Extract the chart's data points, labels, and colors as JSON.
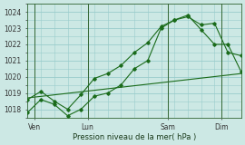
{
  "xlabel": "Pression niveau de la mer( hPa )",
  "background_color": "#cce8e4",
  "grid_color": "#99cccc",
  "line_color": "#1a6b1a",
  "ylim": [
    1017.5,
    1024.5
  ],
  "yticks": [
    1018,
    1019,
    1020,
    1021,
    1022,
    1023,
    1024
  ],
  "day_labels": [
    "Ven",
    "Lun",
    "Sam",
    "Dim"
  ],
  "day_positions": [
    0.5,
    4.5,
    10.5,
    14.5
  ],
  "vline_positions": [
    0.5,
    4.5,
    10.5,
    14.5
  ],
  "series1_x": [
    0,
    1,
    2,
    3,
    4,
    5,
    6,
    7,
    8,
    9,
    10,
    11,
    12,
    13,
    14,
    15,
    16
  ],
  "series1_y": [
    1017.8,
    1018.6,
    1018.3,
    1017.6,
    1018.0,
    1018.8,
    1019.0,
    1019.5,
    1020.5,
    1021.0,
    1023.0,
    1023.5,
    1023.8,
    1022.9,
    1022.0,
    1022.0,
    1020.3
  ],
  "series2_x": [
    0,
    1,
    2,
    3,
    4,
    5,
    6,
    7,
    8,
    9,
    10,
    11,
    12,
    13,
    14,
    15,
    16
  ],
  "series2_y": [
    1018.6,
    1019.1,
    1018.5,
    1018.0,
    1018.9,
    1019.9,
    1020.2,
    1020.7,
    1021.5,
    1022.1,
    1023.1,
    1023.5,
    1023.7,
    1023.2,
    1023.3,
    1021.5,
    1021.3
  ],
  "series3_x": [
    0,
    16
  ],
  "series3_y": [
    1018.7,
    1020.2
  ],
  "xlim": [
    0,
    16
  ]
}
